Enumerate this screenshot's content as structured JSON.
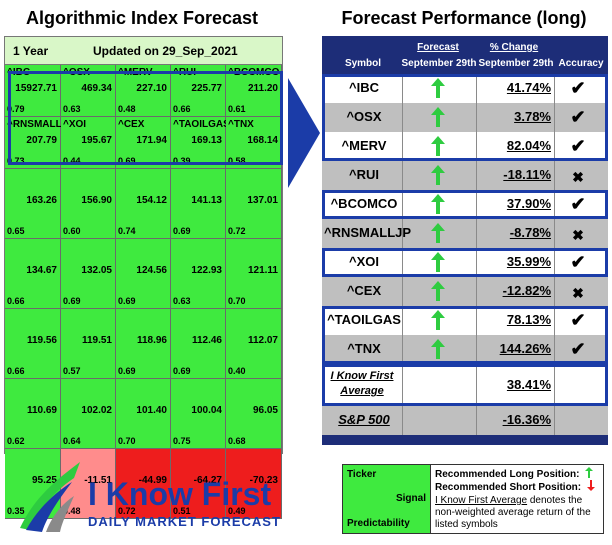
{
  "left": {
    "title": "Algorithmic Index Forecast",
    "period": "1 Year",
    "updated": "Updated on 29_Sep_2021",
    "rows": [
      [
        {
          "sym": "^IBC",
          "val": "15927.71",
          "pred": "0.79",
          "color": "green"
        },
        {
          "sym": "^OSX",
          "val": "469.34",
          "pred": "0.63",
          "color": "green"
        },
        {
          "sym": "^MERV",
          "val": "227.10",
          "pred": "0.48",
          "color": "green"
        },
        {
          "sym": "^RUI",
          "val": "225.77",
          "pred": "0.66",
          "color": "green"
        },
        {
          "sym": "^BCOMCO",
          "val": "211.20",
          "pred": "0.61",
          "color": "green"
        }
      ],
      [
        {
          "sym": "^RNSMALLJP",
          "val": "207.79",
          "pred": "0.73",
          "color": "green"
        },
        {
          "sym": "^XOI",
          "val": "195.67",
          "pred": "0.44",
          "color": "green"
        },
        {
          "sym": "^CEX",
          "val": "171.94",
          "pred": "0.69",
          "color": "green"
        },
        {
          "sym": "^TAOILGAS",
          "val": "169.13",
          "pred": "0.39",
          "color": "green"
        },
        {
          "sym": "^TNX",
          "val": "168.14",
          "pred": "0.58",
          "color": "green"
        }
      ],
      [
        {
          "sym": "",
          "val": "163.26",
          "pred": "0.65",
          "color": "green"
        },
        {
          "sym": "",
          "val": "156.90",
          "pred": "0.60",
          "color": "green"
        },
        {
          "sym": "",
          "val": "154.12",
          "pred": "0.74",
          "color": "green"
        },
        {
          "sym": "",
          "val": "141.13",
          "pred": "0.69",
          "color": "green"
        },
        {
          "sym": "",
          "val": "137.01",
          "pred": "0.72",
          "color": "green"
        }
      ],
      [
        {
          "sym": "",
          "val": "134.67",
          "pred": "0.66",
          "color": "green"
        },
        {
          "sym": "",
          "val": "132.05",
          "pred": "0.69",
          "color": "green"
        },
        {
          "sym": "",
          "val": "124.56",
          "pred": "0.69",
          "color": "green"
        },
        {
          "sym": "",
          "val": "122.93",
          "pred": "0.63",
          "color": "green"
        },
        {
          "sym": "",
          "val": "121.11",
          "pred": "0.70",
          "color": "green"
        }
      ],
      [
        {
          "sym": "",
          "val": "119.56",
          "pred": "0.66",
          "color": "green"
        },
        {
          "sym": "",
          "val": "119.51",
          "pred": "0.57",
          "color": "green"
        },
        {
          "sym": "",
          "val": "118.96",
          "pred": "0.69",
          "color": "green"
        },
        {
          "sym": "",
          "val": "112.46",
          "pred": "0.69",
          "color": "green"
        },
        {
          "sym": "",
          "val": "112.07",
          "pred": "0.40",
          "color": "green"
        }
      ],
      [
        {
          "sym": "",
          "val": "110.69",
          "pred": "0.62",
          "color": "green"
        },
        {
          "sym": "",
          "val": "102.02",
          "pred": "0.64",
          "color": "green"
        },
        {
          "sym": "",
          "val": "101.40",
          "pred": "0.70",
          "color": "green"
        },
        {
          "sym": "",
          "val": "100.04",
          "pred": "0.75",
          "color": "green"
        },
        {
          "sym": "",
          "val": "96.05",
          "pred": "0.68",
          "color": "green"
        }
      ],
      [
        {
          "sym": "",
          "val": "95.25",
          "pred": "0.35",
          "color": "green"
        },
        {
          "sym": "",
          "val": "-11.51",
          "pred": "0.48",
          "color": "pink"
        },
        {
          "sym": "",
          "val": "-44.99",
          "pred": "0.72",
          "color": "red"
        },
        {
          "sym": "",
          "val": "-64.27",
          "pred": "0.51",
          "color": "red"
        },
        {
          "sym": "",
          "val": "-70.23",
          "pred": "0.49",
          "color": "red"
        }
      ]
    ]
  },
  "right": {
    "title": "Forecast Performance (long)",
    "headers": {
      "symbol": "Symbol",
      "forecast_top": "Forecast",
      "forecast_bottom": "September 29th",
      "change_top": "% Change",
      "change_bottom": "September 29th",
      "accuracy": "Accuracy"
    },
    "rows": [
      {
        "sym": "^IBC",
        "chg": "41.74%",
        "acc": "✔",
        "shade": "white",
        "boxed": true
      },
      {
        "sym": "^OSX",
        "chg": "3.78%",
        "acc": "✔",
        "shade": "gray",
        "boxed": true
      },
      {
        "sym": "^MERV",
        "chg": "82.04%",
        "acc": "✔",
        "shade": "white",
        "boxed": true
      },
      {
        "sym": "^RUI",
        "chg": "-18.11%",
        "acc": "✖",
        "shade": "gray",
        "boxed": false
      },
      {
        "sym": "^BCOMCO",
        "chg": "37.90%",
        "acc": "✔",
        "shade": "white",
        "boxed": true
      },
      {
        "sym": "^RNSMALLJP",
        "chg": "-8.78%",
        "acc": "✖",
        "shade": "gray",
        "boxed": false
      },
      {
        "sym": "^XOI",
        "chg": "35.99%",
        "acc": "✔",
        "shade": "white",
        "boxed": true
      },
      {
        "sym": "^CEX",
        "chg": "-12.82%",
        "acc": "✖",
        "shade": "gray",
        "boxed": false
      },
      {
        "sym": "^TAOILGAS",
        "chg": "78.13%",
        "acc": "✔",
        "shade": "white",
        "boxed": true
      },
      {
        "sym": "^TNX",
        "chg": "144.26%",
        "acc": "✔",
        "shade": "gray",
        "boxed": true
      }
    ],
    "average": {
      "label": "I Know First Average",
      "chg": "38.41%"
    },
    "benchmark": {
      "label": "S&P 500",
      "chg": "-16.36%"
    }
  },
  "logo": {
    "brand": "I Know First",
    "tagline": "DAILY MARKET FORECAST"
  },
  "legend": {
    "ticker": "Ticker",
    "signal": "Signal",
    "predictability": "Predictability",
    "long": "Recommended Long Position:",
    "short": "Recommended Short Position:",
    "note_link": "I Know First Average",
    "note_rest": " denotes the non-weighted average return of the listed symbols"
  },
  "colors": {
    "green": "#3fea3f",
    "pink": "#ff8c8c",
    "red": "#ee1d1d",
    "navy": "#1d2d78",
    "box_blue": "#1b3ca8",
    "arrow_green": "#2ecc40",
    "gray": "#bfbfbf"
  },
  "icons": {
    "up_arrow": "up-arrow-icon",
    "down_arrow": "down-arrow-icon",
    "check": "check-icon",
    "cross": "cross-icon"
  }
}
